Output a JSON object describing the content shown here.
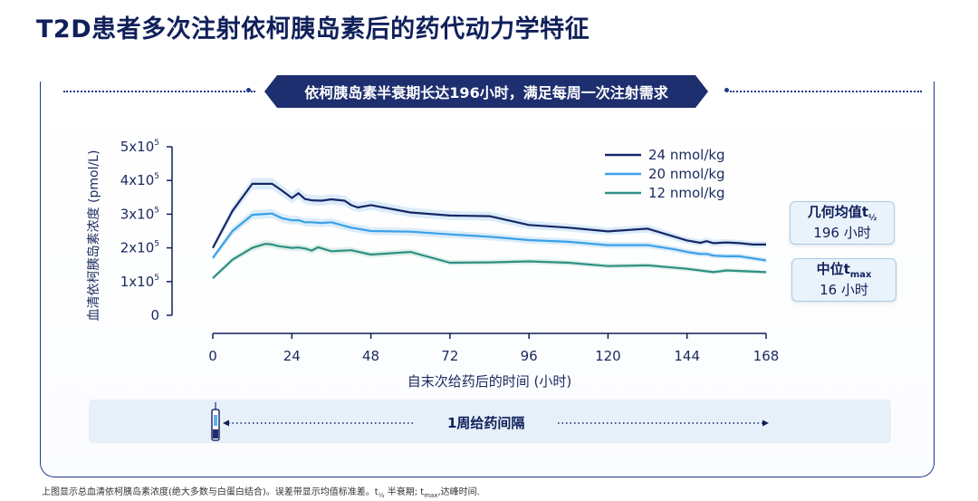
{
  "page": {
    "title": "T2D患者多次注射依柯胰岛素后的药代动力学特征",
    "banner": "依柯胰岛素半衰期长达196小时，满足每周一次注射需求",
    "interval_label": "1周给药间隔",
    "footnote_a": "上图显示总血清依柯胰岛素浓度(绝大多数与白蛋白结合)。误差带显示均值标准差。t",
    "footnote_half": "½",
    "footnote_b": " 半衰期; t",
    "footnote_max": "max",
    "footnote_c": ",达峰时间."
  },
  "callouts": {
    "half_life": {
      "label": "几何均值t",
      "sub": "½",
      "value": "196 小时"
    },
    "tmax": {
      "label": "中位t",
      "sub": "max",
      "value": "16 小时"
    }
  },
  "colors": {
    "dark": "#162766",
    "mid": "#3aa0e8",
    "low": "#2f8f84",
    "band": "#cfe6f7",
    "band_low": "#d4ebe3"
  },
  "chart_data": {
    "type": "line",
    "title": "",
    "xlabel": "自末次给药后的时间 (小时)",
    "ylabel": "血清依柯胰岛素浓度 (pmol/L)",
    "xlim": [
      0,
      168
    ],
    "ylim": [
      0,
      500000
    ],
    "x_ticks": [
      0,
      24,
      48,
      72,
      96,
      120,
      144,
      168
    ],
    "x_tick_labels": [
      "0",
      "24",
      "48",
      "72",
      "96",
      "120",
      "144",
      "168"
    ],
    "y_ticks": [
      0,
      100000,
      200000,
      300000,
      400000,
      500000
    ],
    "y_tick_labels": [
      {
        "base": "0",
        "exp": ""
      },
      {
        "base": "1x10",
        "exp": "5"
      },
      {
        "base": "2x10",
        "exp": "5"
      },
      {
        "base": "3x10",
        "exp": "5"
      },
      {
        "base": "4x10",
        "exp": "5"
      },
      {
        "base": "5x10",
        "exp": "5"
      }
    ],
    "legend_position": "top-right",
    "series": [
      {
        "name": "24 nmol/kg",
        "x": [
          0,
          6,
          12,
          18,
          21,
          24,
          26,
          28,
          30,
          33,
          36,
          40,
          42,
          44,
          48,
          60,
          72,
          84,
          96,
          108,
          120,
          132,
          144,
          148,
          150,
          152,
          156,
          160,
          164,
          168
        ],
        "y": [
          200000,
          310000,
          390000,
          390000,
          370000,
          348000,
          362000,
          345000,
          341000,
          340000,
          344000,
          340000,
          327000,
          320000,
          327000,
          305000,
          296000,
          294000,
          268000,
          260000,
          249000,
          257000,
          222000,
          215000,
          220000,
          214000,
          216000,
          214000,
          210000,
          210000
        ]
      },
      {
        "name": "20 nmol/kg",
        "x": [
          0,
          6,
          12,
          18,
          21,
          24,
          26,
          28,
          30,
          33,
          36,
          42,
          48,
          60,
          72,
          84,
          96,
          108,
          120,
          132,
          140,
          144,
          148,
          150,
          152,
          156,
          160,
          168
        ],
        "y": [
          170000,
          250000,
          298000,
          302000,
          288000,
          282000,
          282000,
          276000,
          276000,
          274000,
          276000,
          260000,
          250000,
          248000,
          240000,
          233000,
          223000,
          218000,
          208000,
          208000,
          196000,
          188000,
          182000,
          182000,
          177000,
          175000,
          175000,
          163000
        ]
      },
      {
        "name": "12 nmol/kg",
        "x": [
          0,
          6,
          12,
          16,
          18,
          20,
          24,
          26,
          28,
          30,
          32,
          36,
          42,
          48,
          60,
          72,
          84,
          96,
          108,
          120,
          132,
          144,
          152,
          156,
          168
        ],
        "y": [
          110000,
          165000,
          200000,
          212000,
          210000,
          205000,
          200000,
          201000,
          198000,
          192000,
          202000,
          190000,
          193000,
          180000,
          188000,
          156000,
          157000,
          160000,
          156000,
          146000,
          148000,
          138000,
          128000,
          133000,
          128000
        ]
      }
    ]
  }
}
